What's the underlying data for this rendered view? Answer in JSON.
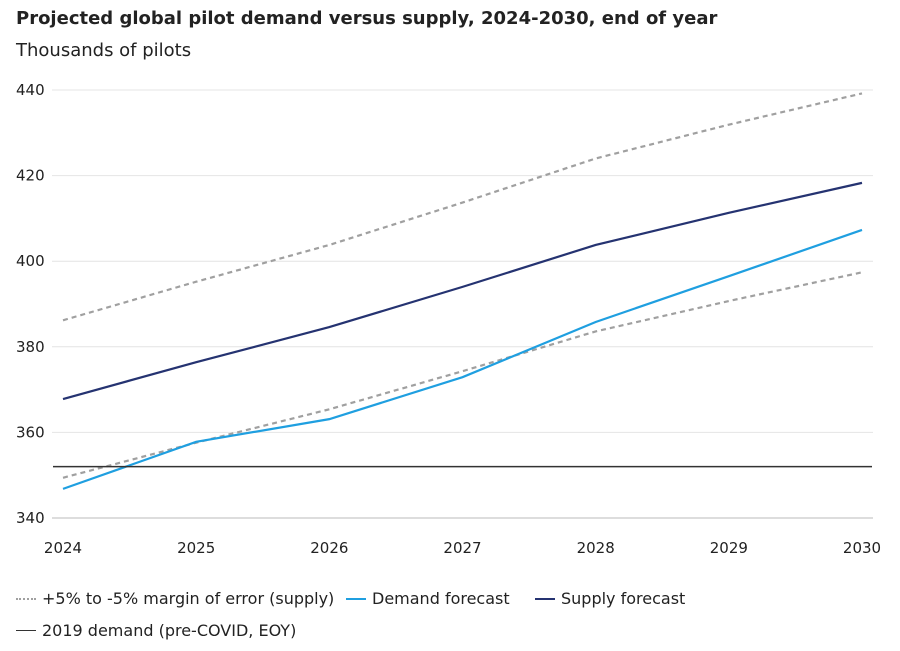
{
  "chart_data": {
    "type": "line",
    "title": "Projected global pilot demand versus supply, 2024-2030, end of year",
    "subtitle": "Thousands of pilots",
    "x": [
      2024,
      2025,
      2026,
      2027,
      2028,
      2029,
      2030
    ],
    "ylim": [
      340,
      440
    ],
    "yticks": [
      340,
      360,
      380,
      400,
      420,
      440
    ],
    "grid": true,
    "legend_position": "bottom",
    "series": [
      {
        "name": "+5% to -5% margin of error (supply)",
        "key": "upper",
        "color": "#a0a0a0",
        "style": "dotted",
        "values": [
          386.2,
          395.2,
          403.8,
          413.7,
          424.0,
          431.9,
          439.2
        ]
      },
      {
        "name": "",
        "key": "lower",
        "color": "#a0a0a0",
        "style": "dotted",
        "values": [
          349.4,
          357.6,
          365.4,
          374.3,
          383.6,
          390.7,
          397.4
        ]
      },
      {
        "name": "Demand forecast",
        "key": "demand",
        "color": "#1f9fe0",
        "style": "solid",
        "values": [
          346.8,
          357.8,
          363.1,
          372.9,
          385.8,
          396.5,
          407.3
        ]
      },
      {
        "name": "Supply forecast",
        "key": "supply",
        "color": "#253371",
        "style": "solid",
        "values": [
          367.8,
          376.4,
          384.6,
          394.0,
          403.8,
          411.3,
          418.3
        ]
      },
      {
        "name": "2019 demand (pre-COVID, EOY)",
        "key": "demand2019",
        "color": "#333333",
        "style": "solid",
        "values": [
          352,
          352,
          352,
          352,
          352,
          352,
          352
        ]
      }
    ]
  }
}
